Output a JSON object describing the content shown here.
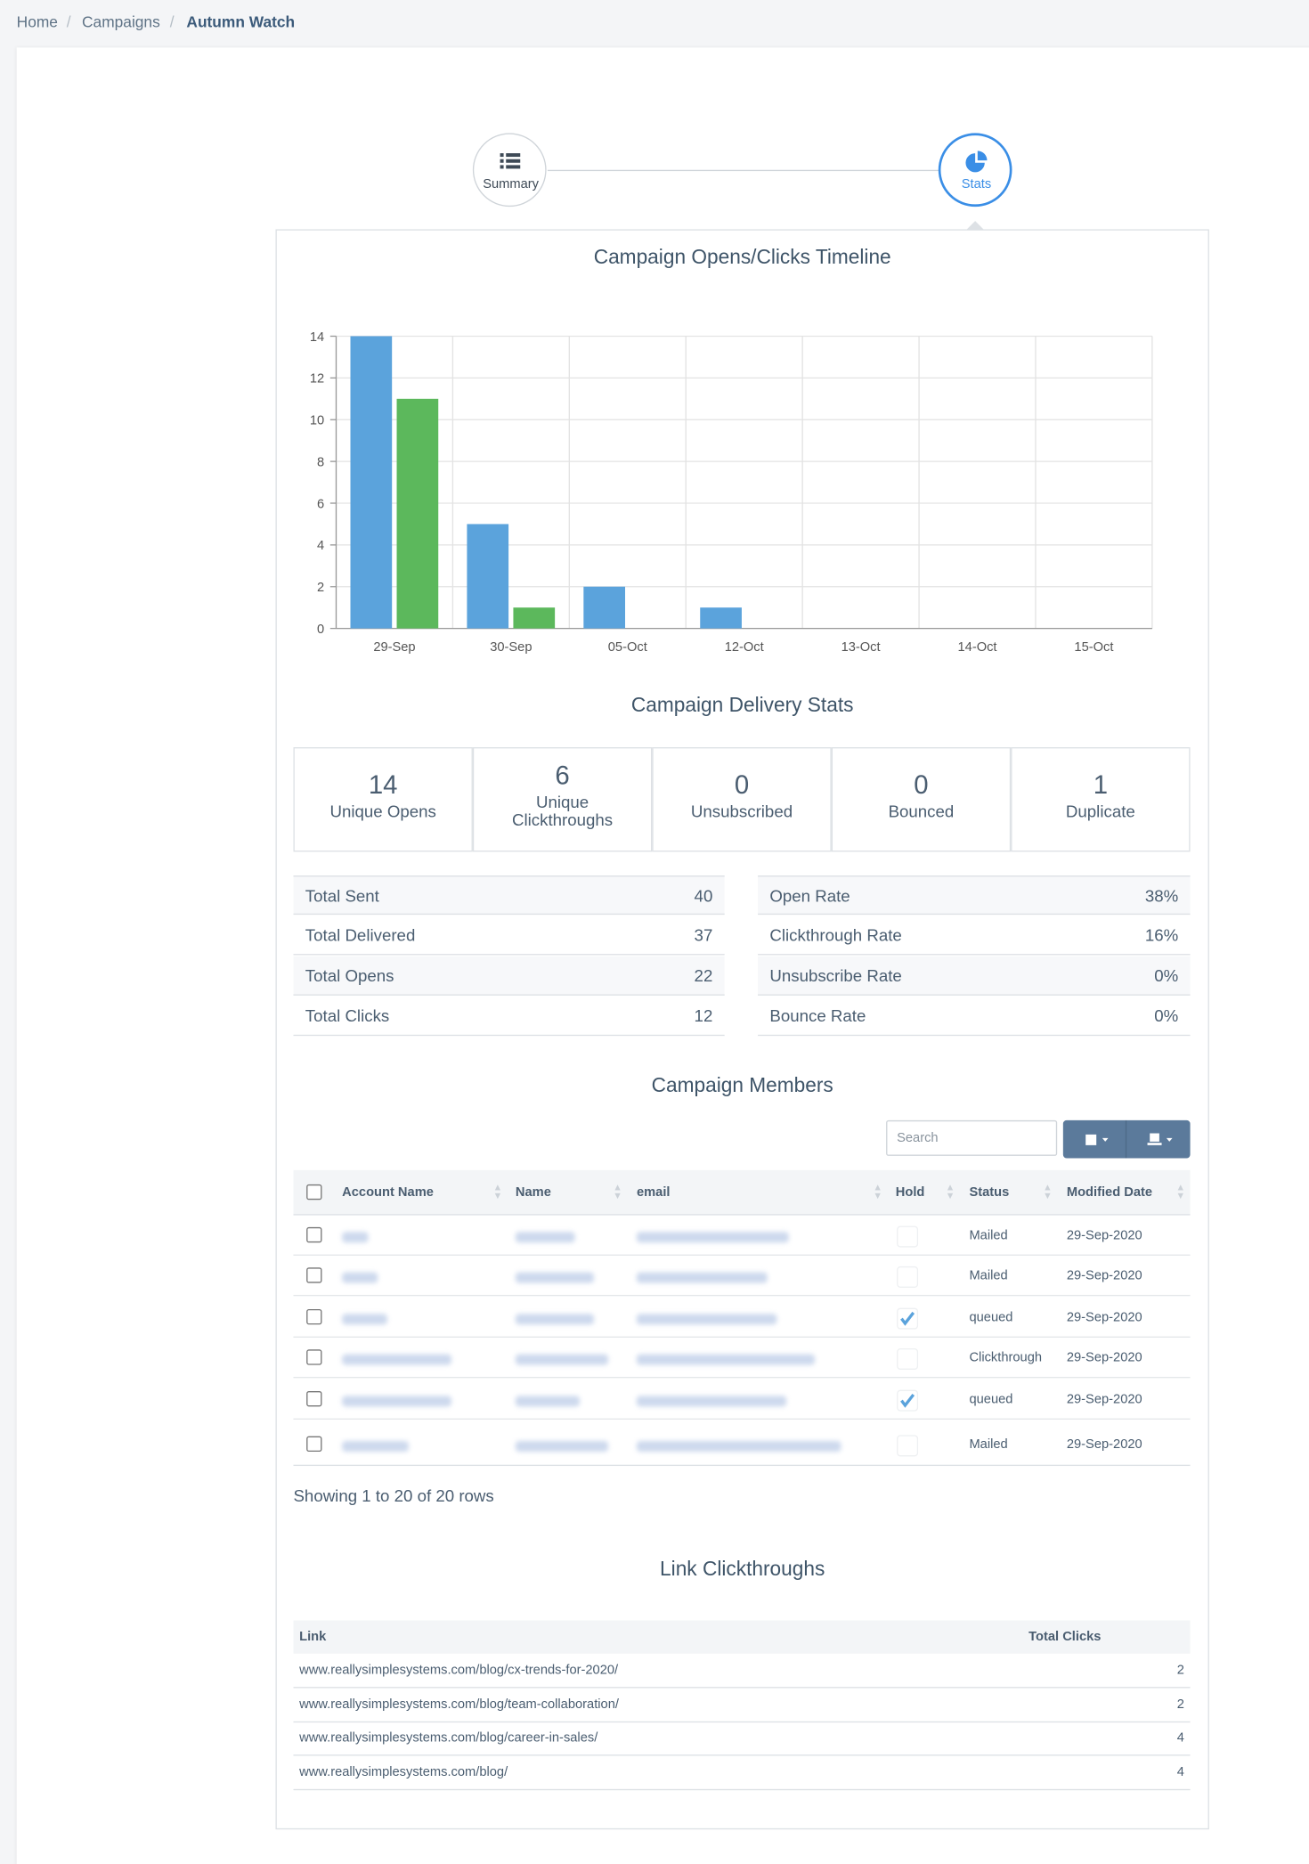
{
  "breadcrumb": [
    "Home",
    "Campaigns",
    "Autumn Watch"
  ],
  "steps": [
    "Summary",
    "Stats"
  ],
  "chart_data": {
    "type": "bar",
    "title": "Campaign Opens/Clicks Timeline",
    "categories": [
      "29-Sep",
      "30-Sep",
      "05-Oct",
      "12-Oct",
      "13-Oct",
      "14-Oct",
      "15-Oct"
    ],
    "series": [
      {
        "color": "#5ba3dc",
        "values": [
          14,
          5,
          2,
          1,
          0,
          0,
          0
        ]
      },
      {
        "color": "#5cb85c",
        "values": [
          11,
          1,
          0,
          0,
          0,
          0,
          0
        ]
      }
    ],
    "ylim": [
      0,
      14
    ],
    "yticks": [
      0,
      2,
      4,
      6,
      8,
      10,
      12,
      14
    ],
    "grid": true
  },
  "delivery": {
    "title": "Campaign Delivery Stats",
    "stats": [
      {
        "value": "14",
        "label": "Unique Opens"
      },
      {
        "value": "6",
        "label": "Unique Clickthroughs"
      },
      {
        "value": "0",
        "label": "Unsubscribed"
      },
      {
        "value": "0",
        "label": "Bounced"
      },
      {
        "value": "1",
        "label": "Duplicate"
      }
    ],
    "left": [
      [
        "Total Sent",
        "40"
      ],
      [
        "Total Delivered",
        "37"
      ],
      [
        "Total Opens",
        "22"
      ],
      [
        "Total Clicks",
        "12"
      ]
    ],
    "right": [
      [
        "Open Rate",
        "38%"
      ],
      [
        "Clickthrough Rate",
        "16%"
      ],
      [
        "Unsubscribe Rate",
        "0%"
      ],
      [
        "Bounce Rate",
        "0%"
      ]
    ]
  },
  "members": {
    "title": "Campaign Members",
    "search": "Search",
    "columns": [
      "Account Name",
      "Name",
      "email",
      "Hold",
      "Status",
      "Modified Date"
    ],
    "rows": [
      {
        "hold": false,
        "status": "Mailed",
        "modified": "29-Sep-2020"
      },
      {
        "hold": false,
        "status": "Mailed",
        "modified": "29-Sep-2020"
      },
      {
        "hold": true,
        "status": "queued",
        "modified": "29-Sep-2020"
      },
      {
        "hold": false,
        "status": "Clickthrough",
        "modified": "29-Sep-2020"
      },
      {
        "hold": true,
        "status": "queued",
        "modified": "29-Sep-2020"
      },
      {
        "hold": false,
        "status": "Mailed",
        "modified": "29-Sep-2020"
      }
    ],
    "footer": "Showing 1 to 20 of 20 rows"
  },
  "links": {
    "title": "Link Clickthroughs",
    "columns": [
      "Link",
      "Total Clicks"
    ],
    "rows": [
      [
        "www.reallysimplesystems.com/blog/cx-trends-for-2020/",
        "2"
      ],
      [
        "www.reallysimplesystems.com/blog/team-collaboration/",
        "2"
      ],
      [
        "www.reallysimplesystems.com/blog/career-in-sales/",
        "4"
      ],
      [
        "www.reallysimplesystems.com/blog/",
        "4"
      ]
    ]
  }
}
